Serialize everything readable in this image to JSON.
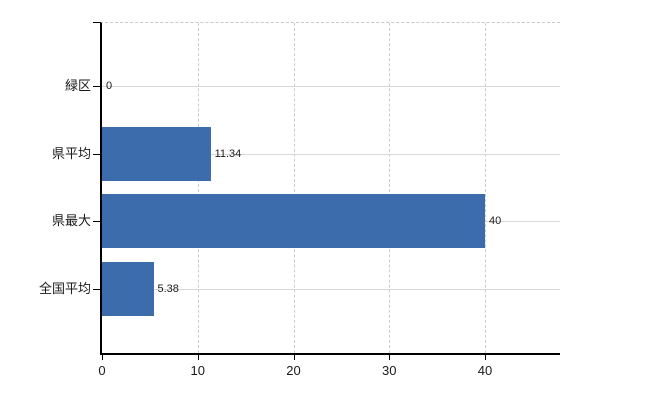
{
  "chart_data": {
    "type": "bar",
    "orientation": "horizontal",
    "title": "",
    "xlabel": "",
    "ylabel": "",
    "categories": [
      "緑区",
      "県平均",
      "県最大",
      "全国平均"
    ],
    "values": [
      0,
      11.34,
      40,
      5.38
    ],
    "value_labels": [
      "0",
      "11.34",
      "40",
      "5.38"
    ],
    "x_ticks": [
      0,
      10,
      20,
      30,
      40
    ],
    "x_tick_labels": [
      "0",
      "10",
      "20",
      "30",
      "40"
    ],
    "xlim": [
      0,
      48
    ],
    "grid": true,
    "legend": "none",
    "bar_color": "#3c6cac",
    "axis_color": "#000000",
    "h_gridline_color": "#d3dbd3",
    "v_gridline_color": "#cccccc",
    "top_border_color": "#c9c9c9",
    "text_color": "#1a1a1a"
  }
}
